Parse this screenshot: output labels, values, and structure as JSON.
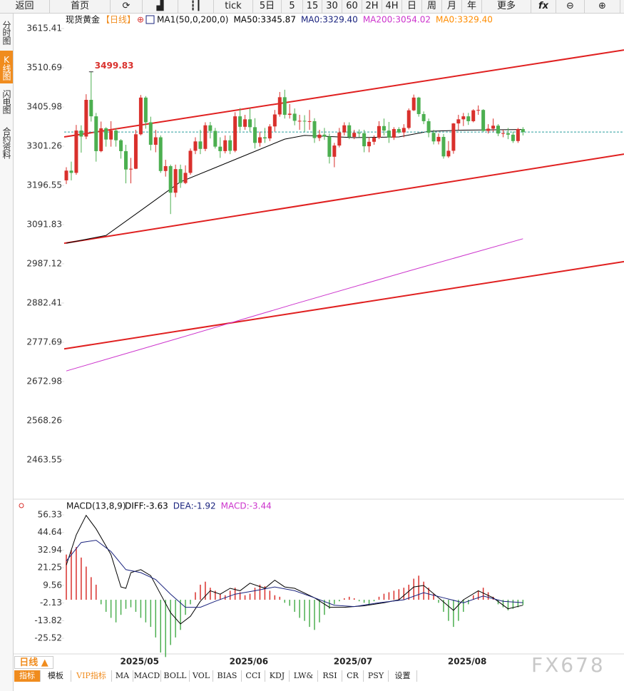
{
  "toolbar": {
    "buttons": [
      "返回",
      "首页",
      "tick",
      "5日",
      "5",
      "15",
      "30",
      "60",
      "2H",
      "4H",
      "日",
      "周",
      "月",
      "年",
      "更多"
    ]
  },
  "sidebar": [
    "分时图",
    "K线图",
    "闪电图",
    "合约资料"
  ],
  "chart_data": [
    {
      "type": "candlestick",
      "title": "现货黄金",
      "period": "【日线】",
      "indicator": "MA1(50,0,200,0)",
      "legend": [
        {
          "name": "MA50:3345.87",
          "color": "#000000"
        },
        {
          "name": "MA0:3329.40",
          "color": "#1a237e"
        },
        {
          "name": "MA200:3054.02",
          "color": "#cc33cc"
        },
        {
          "name": "MA0:3329.40",
          "color": "#ff8c00"
        }
      ],
      "categories": [
        null,
        null,
        null,
        null,
        null,
        null,
        null,
        null,
        null,
        null,
        null,
        null,
        "2025/05",
        null,
        null,
        null,
        null,
        null,
        null,
        null,
        null,
        null,
        null,
        null,
        null,
        null,
        null,
        null,
        null,
        null,
        null,
        null,
        null,
        null,
        "2025/06",
        null,
        null,
        null,
        null,
        null,
        null,
        null,
        null,
        null,
        null,
        null,
        null,
        null,
        null,
        null,
        null,
        null,
        null,
        null,
        null,
        "2025/07",
        null,
        null,
        null,
        null,
        null,
        null,
        null,
        null,
        null,
        null,
        null,
        null,
        null,
        null,
        null,
        null,
        null,
        null,
        null,
        null,
        null,
        null,
        "2025/08",
        null,
        null,
        null,
        null,
        null,
        null,
        null,
        null,
        null,
        null,
        null,
        null,
        null,
        null
      ],
      "open": [
        3210,
        3236,
        3230,
        3343,
        3327,
        3425,
        3381,
        3288,
        3349,
        3319,
        3343,
        3317,
        3288,
        3239,
        3241,
        3333,
        3431,
        3365,
        3305,
        3325,
        3235,
        3248,
        3177,
        3240,
        3203,
        3230,
        3289,
        3314,
        3294,
        3357,
        3342,
        3300,
        3288,
        3317,
        3289,
        3381,
        3353,
        3373,
        3352,
        3310,
        3325,
        3322,
        3354,
        3386,
        3432,
        3385,
        3388,
        3369,
        3369,
        3368,
        3368,
        3323,
        3332,
        3327,
        3273,
        3303,
        3338,
        3357,
        3326,
        3337,
        3336,
        3301,
        3313,
        3324,
        3355,
        3343,
        3324,
        3347,
        3338,
        3350,
        3397,
        3431,
        3387,
        3368,
        3337,
        3314,
        3326,
        3274,
        3289,
        3362,
        3373,
        3381,
        3368,
        3397,
        3398,
        3342,
        3348,
        3356,
        3335,
        3336,
        3332,
        3315,
        3347
      ],
      "high": [
        3245,
        3260,
        3358,
        3357,
        3440,
        3499.83,
        3390,
        3367,
        3352,
        3368,
        3350,
        3320,
        3305,
        3270,
        3345,
        3438,
        3435,
        3380,
        3345,
        3330,
        3265,
        3252,
        3252,
        3252,
        3250,
        3295,
        3325,
        3345,
        3365,
        3366,
        3350,
        3325,
        3330,
        3330,
        3392,
        3403,
        3385,
        3403,
        3376,
        3340,
        3350,
        3360,
        3398,
        3446,
        3452,
        3414,
        3402,
        3385,
        3384,
        3398,
        3376,
        3345,
        3350,
        3335,
        3310,
        3350,
        3365,
        3365,
        3345,
        3346,
        3345,
        3325,
        3330,
        3368,
        3375,
        3366,
        3352,
        3352,
        3360,
        3402,
        3439,
        3433,
        3394,
        3375,
        3345,
        3335,
        3334,
        3315,
        3363,
        3385,
        3390,
        3390,
        3400,
        3410,
        3400,
        3360,
        3375,
        3360,
        3345,
        3350,
        3340,
        3350,
        3352
      ],
      "low": [
        3200,
        3210,
        3225,
        3284,
        3320,
        3367,
        3260,
        3285,
        3300,
        3300,
        3300,
        3268,
        3202,
        3202,
        3240,
        3330,
        3348,
        3290,
        3285,
        3230,
        3220,
        3120,
        3165,
        3190,
        3200,
        3225,
        3280,
        3280,
        3288,
        3322,
        3295,
        3270,
        3282,
        3280,
        3285,
        3342,
        3345,
        3340,
        3295,
        3300,
        3310,
        3315,
        3340,
        3380,
        3375,
        3375,
        3357,
        3345,
        3340,
        3345,
        3310,
        3315,
        3318,
        3255,
        3245,
        3298,
        3330,
        3320,
        3320,
        3325,
        3285,
        3285,
        3305,
        3320,
        3330,
        3310,
        3318,
        3335,
        3325,
        3346,
        3395,
        3380,
        3360,
        3325,
        3306,
        3306,
        3268,
        3270,
        3281,
        3345,
        3355,
        3358,
        3365,
        3385,
        3340,
        3335,
        3340,
        3328,
        3325,
        3320,
        3310,
        3310,
        3330
      ],
      "close": [
        3236,
        3230,
        3343,
        3327,
        3425,
        3381,
        3288,
        3349,
        3319,
        3343,
        3317,
        3288,
        3239,
        3241,
        3333,
        3431,
        3365,
        3305,
        3325,
        3235,
        3248,
        3177,
        3240,
        3203,
        3230,
        3289,
        3314,
        3294,
        3357,
        3342,
        3300,
        3288,
        3317,
        3289,
        3381,
        3353,
        3373,
        3352,
        3310,
        3325,
        3322,
        3354,
        3386,
        3432,
        3385,
        3388,
        3369,
        3369,
        3368,
        3368,
        3323,
        3332,
        3327,
        3273,
        3303,
        3338,
        3357,
        3326,
        3337,
        3336,
        3301,
        3313,
        3324,
        3355,
        3343,
        3324,
        3347,
        3338,
        3350,
        3397,
        3431,
        3387,
        3368,
        3337,
        3314,
        3326,
        3274,
        3289,
        3362,
        3373,
        3381,
        3368,
        3397,
        3398,
        3342,
        3348,
        3356,
        3335,
        3336,
        3332,
        3315,
        3347,
        3339
      ],
      "up_color": "#d9302c",
      "down_color": "#4caf50",
      "last_price_color": "#2a9d9d",
      "series": [
        {
          "color": "#000000",
          "x": [
            0,
            8,
            16,
            23,
            30,
            37,
            44,
            48,
            58,
            67,
            73,
            80,
            87,
            92
          ],
          "values": [
            3042,
            3063,
            3139,
            3206,
            3244,
            3282,
            3320,
            3330,
            3324,
            3326,
            3341,
            3344,
            3345,
            3345.87
          ]
        },
        {
          "color": "#cc33cc",
          "x": [
            0,
            23,
            46,
            69,
            92
          ],
          "values": [
            2701,
            2790,
            2880,
            2968,
            3054.02
          ]
        }
      ],
      "trendlines": [
        {
          "color": "#e02020",
          "values": [
            3326,
            3558
          ]
        },
        {
          "color": "#e02020",
          "values": [
            3042,
            3280
          ]
        },
        {
          "color": "#e02020",
          "values": [
            2760,
            2993
          ]
        }
      ],
      "ylim": [
        2362.5,
        3653.5
      ],
      "yticks": [
        3615.41,
        3510.69,
        3405.98,
        3301.26,
        3196.55,
        3091.83,
        2987.12,
        2882.41,
        2777.69,
        2672.98,
        2568.26,
        2463.55
      ]
    },
    {
      "type": "macd",
      "title": "MACD(13,8,9)",
      "legend": [
        {
          "name": "DIFF:-3.63",
          "color": "#000000"
        },
        {
          "name": "DEA:-1.92",
          "color": "#1a237e"
        },
        {
          "name": "MACD:-3.44",
          "color": "#cc33cc"
        }
      ],
      "histogram": [
        30,
        33,
        35,
        28,
        22,
        15,
        10,
        -3,
        -8,
        -12,
        -15,
        -10,
        -6,
        -5,
        -8,
        -12,
        -15,
        -18,
        -25,
        -35,
        -38,
        -30,
        -25,
        -20,
        -10,
        -3,
        5,
        10,
        12,
        8,
        6,
        4,
        3,
        6,
        8,
        5,
        3,
        4,
        8,
        10,
        9,
        6,
        3,
        2,
        -2,
        -4,
        -8,
        -12,
        -14,
        -18,
        -20,
        -15,
        -10,
        -6,
        -3,
        -1,
        1,
        2,
        1,
        -1,
        -2,
        -3,
        -1,
        2,
        4,
        5,
        6,
        7,
        8,
        10,
        14,
        16,
        12,
        8,
        4,
        -2,
        -8,
        -14,
        -18,
        -14,
        -8,
        -3,
        3,
        6,
        8,
        5,
        2,
        -3,
        -5,
        -7,
        -6,
        -5,
        -3.44
      ],
      "up_color": "#d9302c",
      "down_color": "#4caf50",
      "series": [
        {
          "color": "#000000",
          "x": [
            0,
            2,
            4,
            6,
            9,
            11,
            12,
            13,
            15,
            17,
            19,
            21,
            23,
            25,
            27,
            29,
            31,
            33,
            35,
            37,
            40,
            42,
            44,
            46,
            50,
            53,
            56,
            60,
            64,
            67,
            70,
            72,
            75,
            78,
            80,
            83,
            86,
            89,
            92
          ],
          "values": [
            23,
            43,
            56,
            47,
            30,
            8.5,
            7.6,
            18,
            20,
            16,
            3.7,
            -8.6,
            -16,
            -11,
            -1,
            6,
            3.7,
            7.6,
            6,
            11,
            7.6,
            13,
            8.5,
            7.6,
            1.3,
            -5,
            -5,
            -4,
            -2,
            0,
            8.5,
            9.5,
            1.3,
            -7,
            0,
            6,
            1.3,
            -6,
            -3.63
          ]
        },
        {
          "color": "#1a237e",
          "x": [
            0,
            3,
            6,
            9,
            12,
            15,
            18,
            21,
            24,
            27,
            30,
            34,
            38,
            42,
            46,
            50,
            54,
            58,
            63,
            68,
            72,
            76,
            80,
            84,
            88,
            92
          ],
          "values": [
            25.7,
            38,
            39.5,
            32,
            20,
            18,
            13.4,
            3.7,
            -5,
            -5,
            -1,
            3.7,
            6,
            8.5,
            6,
            1.3,
            -3.6,
            -4.5,
            -2,
            0,
            4.7,
            1.3,
            -2,
            2.5,
            -1,
            -1.92
          ]
        }
      ],
      "ylim": [
        -34.98,
        61.06
      ],
      "yticks": [
        56.33,
        44.64,
        32.94,
        21.25,
        9.56,
        -2.13,
        -13.82,
        -25.52
      ]
    }
  ],
  "bottom": {
    "period_tab": "日线 ▲",
    "tabs": [
      "指标",
      "模板",
      "VIP指标",
      "MA",
      "MACD",
      "BOLL",
      "VOL",
      "BIAS",
      "CCI",
      "KDJ",
      "LW&",
      "RSI",
      "CR",
      "PSY",
      "设置"
    ],
    "watermark": "FX678"
  }
}
